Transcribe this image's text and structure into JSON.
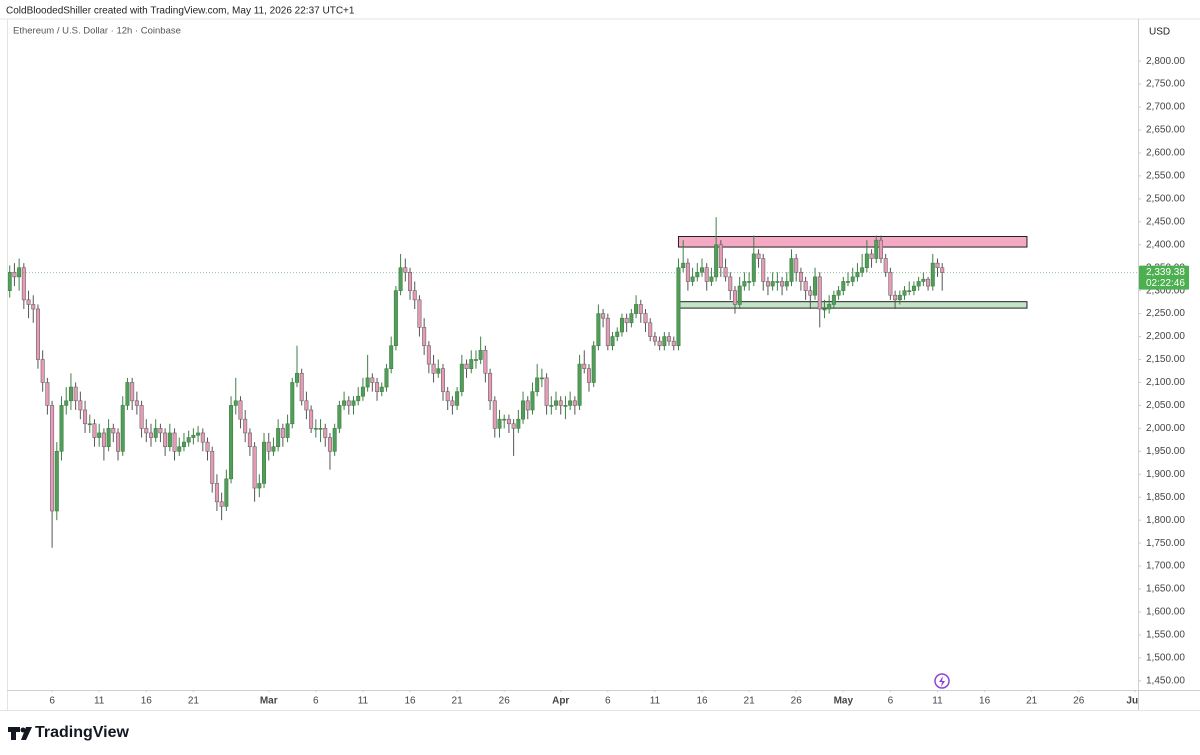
{
  "header": {
    "attribution": "ColdBloodedShiller created with TradingView.com, May 11, 2026 22:37 UTC+1",
    "symbol": "Ethereum / U.S. Dollar · 12h · Coinbase",
    "currency": "USD",
    "logo": "TradingView"
  },
  "chart_data": {
    "type": "candlestick",
    "up_color": "#529d59",
    "down_color": "#e89bb8",
    "ylim": [
      1430,
      2894
    ],
    "xlim": [
      0,
      241
    ],
    "yticks": [
      {
        "value": 2800,
        "label": "2,800.00"
      },
      {
        "value": 2750,
        "label": "2,750.00"
      },
      {
        "value": 2700,
        "label": "2,700.00"
      },
      {
        "value": 2650,
        "label": "2,650.00"
      },
      {
        "value": 2600,
        "label": "2,600.00"
      },
      {
        "value": 2550,
        "label": "2,550.00"
      },
      {
        "value": 2500,
        "label": "2,500.00"
      },
      {
        "value": 2450,
        "label": "2,450.00"
      },
      {
        "value": 2400,
        "label": "2,400.00"
      },
      {
        "value": 2350,
        "label": "2,350.00"
      },
      {
        "value": 2300,
        "label": "2,300.00"
      },
      {
        "value": 2250,
        "label": "2,250.00"
      },
      {
        "value": 2200,
        "label": "2,200.00"
      },
      {
        "value": 2150,
        "label": "2,150.00"
      },
      {
        "value": 2100,
        "label": "2,100.00"
      },
      {
        "value": 2050,
        "label": "2,050.00"
      },
      {
        "value": 2000,
        "label": "2,000.00"
      },
      {
        "value": 1950,
        "label": "1,950.00"
      },
      {
        "value": 1900,
        "label": "1,900.00"
      },
      {
        "value": 1850,
        "label": "1,850.00"
      },
      {
        "value": 1800,
        "label": "1,800.00"
      },
      {
        "value": 1750,
        "label": "1,750.00"
      },
      {
        "value": 1700,
        "label": "1,700.00"
      },
      {
        "value": 1650,
        "label": "1,650.00"
      },
      {
        "value": 1600,
        "label": "1,600.00"
      },
      {
        "value": 1550,
        "label": "1,550.00"
      },
      {
        "value": 1500,
        "label": "1,500.00"
      },
      {
        "value": 1450,
        "label": "1,450.00"
      }
    ],
    "xticks": [
      {
        "value": 10,
        "label": "6"
      },
      {
        "value": 20,
        "label": "11"
      },
      {
        "value": 30,
        "label": "16"
      },
      {
        "value": 40,
        "label": "21"
      },
      {
        "value": 56,
        "label": "Mar"
      },
      {
        "value": 66,
        "label": "6"
      },
      {
        "value": 76,
        "label": "11"
      },
      {
        "value": 86,
        "label": "16"
      },
      {
        "value": 96,
        "label": "21"
      },
      {
        "value": 106,
        "label": "26"
      },
      {
        "value": 118,
        "label": "Apr"
      },
      {
        "value": 128,
        "label": "6"
      },
      {
        "value": 138,
        "label": "11"
      },
      {
        "value": 148,
        "label": "16"
      },
      {
        "value": 158,
        "label": "21"
      },
      {
        "value": 168,
        "label": "26"
      },
      {
        "value": 178,
        "label": "May"
      },
      {
        "value": 188,
        "label": "6"
      },
      {
        "value": 198,
        "label": "11"
      },
      {
        "value": 208,
        "label": "16"
      },
      {
        "value": 218,
        "label": "21"
      },
      {
        "value": 228,
        "label": "26"
      },
      {
        "value": 240,
        "label": "Jun"
      }
    ],
    "last_price": {
      "value": 2339.38,
      "label": "2,339.38",
      "countdown": "02:22:46"
    },
    "zones": [
      {
        "ylim": [
          2395,
          2418
        ],
        "xlim": [
          143,
          217
        ],
        "fill": "#f5a9c4"
      },
      {
        "ylim": [
          2262,
          2276
        ],
        "xlim": [
          143,
          217
        ],
        "fill": "#c3e4c6"
      }
    ],
    "candles": [
      [
        2390,
        2410,
        2290,
        2300
      ],
      [
        2300,
        2355,
        2285,
        2340
      ],
      [
        2340,
        2360,
        2310,
        2330
      ],
      [
        2330,
        2370,
        2300,
        2350
      ],
      [
        2350,
        2360,
        2260,
        2280
      ],
      [
        2280,
        2300,
        2240,
        2270
      ],
      [
        2270,
        2290,
        2230,
        2260
      ],
      [
        2260,
        2270,
        2130,
        2150
      ],
      [
        2150,
        2170,
        2080,
        2100
      ],
      [
        2100,
        2110,
        2030,
        2050
      ],
      [
        2050,
        2060,
        1740,
        1820
      ],
      [
        1820,
        1970,
        1800,
        1950
      ],
      [
        1950,
        2070,
        1930,
        2050
      ],
      [
        2050,
        2090,
        2030,
        2060
      ],
      [
        2060,
        2120,
        2040,
        2090
      ],
      [
        2090,
        2100,
        2040,
        2060
      ],
      [
        2060,
        2080,
        2020,
        2040
      ],
      [
        2040,
        2060,
        1990,
        2010
      ],
      [
        2010,
        2030,
        1990,
        2010
      ],
      [
        2010,
        2020,
        1960,
        1980
      ],
      [
        1980,
        2010,
        1960,
        1990
      ],
      [
        1990,
        2000,
        1930,
        1960
      ],
      [
        1960,
        2020,
        1950,
        2000
      ],
      [
        2000,
        2010,
        1970,
        1990
      ],
      [
        1990,
        2000,
        1930,
        1950
      ],
      [
        1950,
        2070,
        1940,
        2050
      ],
      [
        2050,
        2110,
        2040,
        2100
      ],
      [
        2100,
        2110,
        2040,
        2060
      ],
      [
        2060,
        2080,
        2030,
        2050
      ],
      [
        2050,
        2060,
        1980,
        2000
      ],
      [
        2000,
        2020,
        1970,
        1990
      ],
      [
        1990,
        2010,
        1960,
        1980
      ],
      [
        1980,
        2020,
        1970,
        2000
      ],
      [
        2000,
        2010,
        1970,
        1990
      ],
      [
        1990,
        2000,
        1940,
        1960
      ],
      [
        1960,
        2010,
        1950,
        1990
      ],
      [
        1990,
        2000,
        1930,
        1950
      ],
      [
        1950,
        1980,
        1940,
        1960
      ],
      [
        1960,
        1990,
        1950,
        1970
      ],
      [
        1970,
        1995,
        1960,
        1980
      ],
      [
        1980,
        2000,
        1965,
        1985
      ],
      [
        1985,
        2005,
        1970,
        1990
      ],
      [
        1990,
        2000,
        1950,
        1970
      ],
      [
        1970,
        1980,
        1930,
        1950
      ],
      [
        1950,
        1960,
        1860,
        1880
      ],
      [
        1880,
        1900,
        1820,
        1840
      ],
      [
        1840,
        1860,
        1800,
        1830
      ],
      [
        1830,
        1910,
        1820,
        1890
      ],
      [
        1890,
        2070,
        1880,
        2050
      ],
      [
        2050,
        2110,
        2030,
        2060
      ],
      [
        2060,
        2070,
        2000,
        2020
      ],
      [
        2020,
        2040,
        1970,
        1990
      ],
      [
        1990,
        2000,
        1940,
        1960
      ],
      [
        1960,
        1970,
        1840,
        1870
      ],
      [
        1870,
        1900,
        1850,
        1880
      ],
      [
        1880,
        1990,
        1870,
        1970
      ],
      [
        1970,
        1990,
        1930,
        1950
      ],
      [
        1950,
        1980,
        1940,
        1960
      ],
      [
        1960,
        2020,
        1950,
        2000
      ],
      [
        2000,
        2010,
        1960,
        1980
      ],
      [
        1980,
        2030,
        1970,
        2010
      ],
      [
        2010,
        2110,
        2000,
        2100
      ],
      [
        2100,
        2180,
        2090,
        2120
      ],
      [
        2120,
        2130,
        2050,
        2060
      ],
      [
        2060,
        2080,
        2020,
        2040
      ],
      [
        2040,
        2050,
        1990,
        2000
      ],
      [
        2000,
        2020,
        1980,
        2000
      ],
      [
        2000,
        2020,
        1970,
        2000
      ],
      [
        2000,
        2010,
        1960,
        1980
      ],
      [
        1980,
        1990,
        1910,
        1950
      ],
      [
        1950,
        2010,
        1940,
        2000
      ],
      [
        2000,
        2060,
        1990,
        2050
      ],
      [
        2050,
        2080,
        2040,
        2060
      ],
      [
        2060,
        2070,
        2030,
        2050
      ],
      [
        2050,
        2070,
        2030,
        2060
      ],
      [
        2060,
        2090,
        2050,
        2070
      ],
      [
        2070,
        2110,
        2060,
        2090
      ],
      [
        2090,
        2160,
        2080,
        2110
      ],
      [
        2110,
        2120,
        2080,
        2100
      ],
      [
        2100,
        2110,
        2060,
        2080
      ],
      [
        2080,
        2100,
        2070,
        2090
      ],
      [
        2090,
        2140,
        2080,
        2130
      ],
      [
        2130,
        2200,
        2120,
        2180
      ],
      [
        2180,
        2310,
        2170,
        2300
      ],
      [
        2300,
        2380,
        2290,
        2350
      ],
      [
        2350,
        2370,
        2320,
        2340
      ],
      [
        2340,
        2350,
        2280,
        2300
      ],
      [
        2300,
        2320,
        2260,
        2280
      ],
      [
        2280,
        2290,
        2200,
        2220
      ],
      [
        2220,
        2240,
        2160,
        2180
      ],
      [
        2180,
        2190,
        2120,
        2140
      ],
      [
        2140,
        2160,
        2100,
        2120
      ],
      [
        2120,
        2150,
        2110,
        2130
      ],
      [
        2130,
        2140,
        2060,
        2080
      ],
      [
        2080,
        2090,
        2040,
        2060
      ],
      [
        2060,
        2070,
        2030,
        2050
      ],
      [
        2050,
        2090,
        2040,
        2080
      ],
      [
        2080,
        2160,
        2070,
        2140
      ],
      [
        2140,
        2150,
        2110,
        2130
      ],
      [
        2130,
        2170,
        2120,
        2150
      ],
      [
        2150,
        2170,
        2130,
        2150
      ],
      [
        2150,
        2200,
        2140,
        2170
      ],
      [
        2170,
        2180,
        2100,
        2120
      ],
      [
        2120,
        2130,
        2040,
        2060
      ],
      [
        2060,
        2070,
        1980,
        2000
      ],
      [
        2000,
        2040,
        1980,
        2020
      ],
      [
        2020,
        2030,
        2000,
        2020
      ],
      [
        2020,
        2030,
        1990,
        2010
      ],
      [
        2010,
        2020,
        1940,
        2000
      ],
      [
        2000,
        2040,
        1990,
        2020
      ],
      [
        2020,
        2080,
        2010,
        2060
      ],
      [
        2060,
        2070,
        2020,
        2040
      ],
      [
        2040,
        2100,
        2030,
        2080
      ],
      [
        2080,
        2140,
        2070,
        2110
      ],
      [
        2110,
        2130,
        2090,
        2110
      ],
      [
        2110,
        2120,
        2030,
        2050
      ],
      [
        2050,
        2070,
        2030,
        2050
      ],
      [
        2050,
        2080,
        2040,
        2060
      ],
      [
        2060,
        2070,
        2030,
        2050
      ],
      [
        2050,
        2070,
        2020,
        2050
      ],
      [
        2050,
        2080,
        2040,
        2060
      ],
      [
        2060,
        2070,
        2030,
        2050
      ],
      [
        2050,
        2160,
        2040,
        2140
      ],
      [
        2140,
        2170,
        2120,
        2130
      ],
      [
        2130,
        2140,
        2080,
        2100
      ],
      [
        2100,
        2190,
        2090,
        2180
      ],
      [
        2180,
        2270,
        2170,
        2250
      ],
      [
        2250,
        2260,
        2220,
        2240
      ],
      [
        2240,
        2250,
        2170,
        2180
      ],
      [
        2180,
        2210,
        2170,
        2200
      ],
      [
        2200,
        2220,
        2190,
        2210
      ],
      [
        2210,
        2250,
        2200,
        2240
      ],
      [
        2240,
        2250,
        2210,
        2230
      ],
      [
        2230,
        2260,
        2220,
        2250
      ],
      [
        2250,
        2290,
        2240,
        2270
      ],
      [
        2270,
        2280,
        2230,
        2250
      ],
      [
        2250,
        2260,
        2210,
        2230
      ],
      [
        2230,
        2240,
        2190,
        2200
      ],
      [
        2200,
        2210,
        2180,
        2190
      ],
      [
        2190,
        2200,
        2170,
        2180
      ],
      [
        2180,
        2210,
        2170,
        2200
      ],
      [
        2200,
        2210,
        2180,
        2190
      ],
      [
        2190,
        2200,
        2170,
        2180
      ],
      [
        2180,
        2370,
        2170,
        2350
      ],
      [
        2350,
        2410,
        2340,
        2360
      ],
      [
        2360,
        2370,
        2300,
        2320
      ],
      [
        2320,
        2350,
        2310,
        2330
      ],
      [
        2330,
        2360,
        2320,
        2340
      ],
      [
        2340,
        2370,
        2330,
        2350
      ],
      [
        2350,
        2360,
        2300,
        2320
      ],
      [
        2320,
        2350,
        2310,
        2330
      ],
      [
        2330,
        2460,
        2320,
        2400
      ],
      [
        2400,
        2410,
        2330,
        2350
      ],
      [
        2350,
        2370,
        2320,
        2330
      ],
      [
        2330,
        2340,
        2280,
        2300
      ],
      [
        2300,
        2310,
        2250,
        2270
      ],
      [
        2270,
        2330,
        2260,
        2310
      ],
      [
        2310,
        2340,
        2300,
        2320
      ],
      [
        2320,
        2340,
        2300,
        2320
      ],
      [
        2320,
        2420,
        2310,
        2380
      ],
      [
        2380,
        2390,
        2350,
        2370
      ],
      [
        2370,
        2380,
        2300,
        2320
      ],
      [
        2320,
        2330,
        2290,
        2310
      ],
      [
        2310,
        2340,
        2300,
        2320
      ],
      [
        2320,
        2340,
        2300,
        2320
      ],
      [
        2320,
        2330,
        2290,
        2310
      ],
      [
        2310,
        2340,
        2300,
        2320
      ],
      [
        2320,
        2390,
        2310,
        2370
      ],
      [
        2370,
        2380,
        2320,
        2340
      ],
      [
        2340,
        2350,
        2300,
        2320
      ],
      [
        2320,
        2330,
        2280,
        2300
      ],
      [
        2300,
        2310,
        2260,
        2290
      ],
      [
        2290,
        2350,
        2280,
        2330
      ],
      [
        2330,
        2340,
        2220,
        2260
      ],
      [
        2260,
        2280,
        2240,
        2260
      ],
      [
        2260,
        2290,
        2250,
        2270
      ],
      [
        2270,
        2300,
        2260,
        2290
      ],
      [
        2290,
        2310,
        2280,
        2300
      ],
      [
        2300,
        2330,
        2290,
        2320
      ],
      [
        2320,
        2340,
        2310,
        2320
      ],
      [
        2320,
        2350,
        2310,
        2330
      ],
      [
        2330,
        2360,
        2320,
        2340
      ],
      [
        2340,
        2380,
        2330,
        2350
      ],
      [
        2350,
        2410,
        2340,
        2380
      ],
      [
        2380,
        2390,
        2350,
        2370
      ],
      [
        2370,
        2420,
        2360,
        2410
      ],
      [
        2410,
        2420,
        2360,
        2370
      ],
      [
        2370,
        2380,
        2330,
        2340
      ],
      [
        2340,
        2350,
        2280,
        2290
      ],
      [
        2290,
        2300,
        2260,
        2280
      ],
      [
        2280,
        2300,
        2270,
        2290
      ],
      [
        2290,
        2310,
        2280,
        2300
      ],
      [
        2300,
        2320,
        2290,
        2300
      ],
      [
        2300,
        2320,
        2290,
        2310
      ],
      [
        2310,
        2330,
        2300,
        2320
      ],
      [
        2320,
        2340,
        2310,
        2325
      ],
      [
        2325,
        2330,
        2300,
        2310
      ],
      [
        2310,
        2380,
        2300,
        2360
      ],
      [
        2360,
        2370,
        2330,
        2350
      ],
      [
        2350,
        2360,
        2300,
        2339.38
      ]
    ]
  }
}
